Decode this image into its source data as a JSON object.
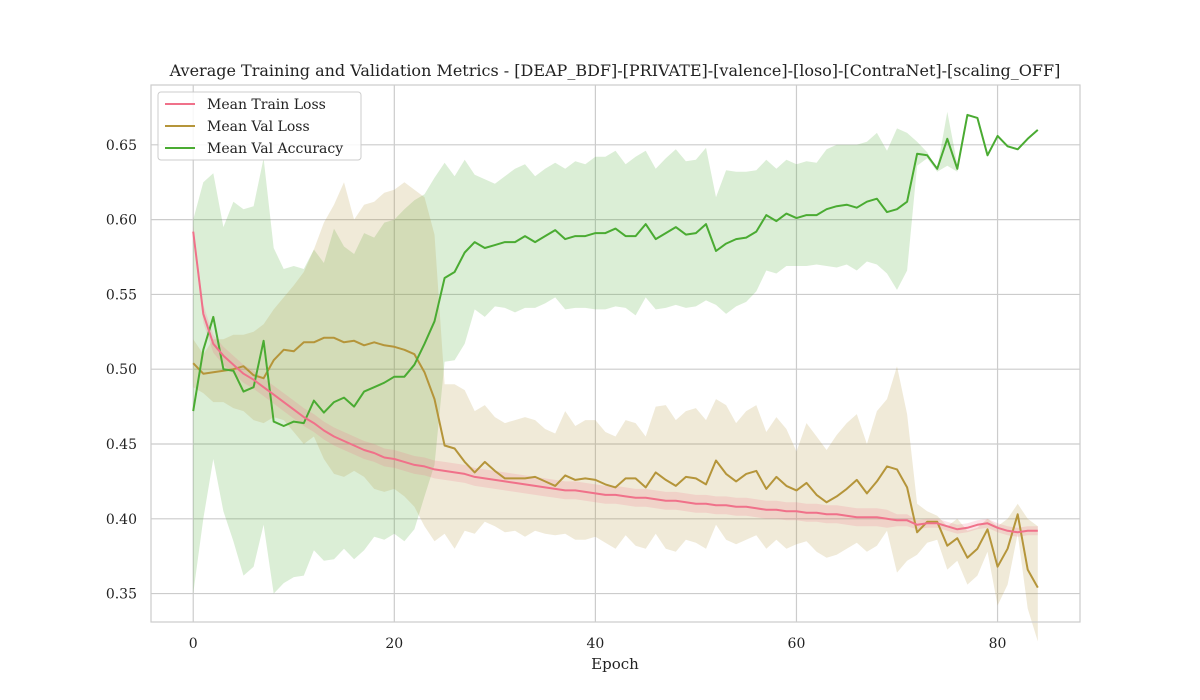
{
  "chart_data": {
    "type": "line",
    "title": "Average Training and Validation Metrics - [DEAP_BDF]-[PRIVATE]-[valence]-[loso]-[ContraNet]-[scaling_OFF]",
    "xlabel": "Epoch",
    "ylabel": "",
    "xlim": [
      -4.2,
      88.2
    ],
    "ylim": [
      0.331,
      0.69
    ],
    "xticks": [
      0,
      20,
      40,
      60,
      80
    ],
    "yticks": [
      0.35,
      0.4,
      0.45,
      0.5,
      0.55,
      0.6,
      0.65
    ],
    "ytick_labels": [
      "0.35",
      "0.40",
      "0.45",
      "0.50",
      "0.55",
      "0.60",
      "0.65"
    ],
    "grid": true,
    "legend_position": "upper-left",
    "x": [
      0,
      1,
      2,
      3,
      4,
      5,
      6,
      7,
      8,
      9,
      10,
      11,
      12,
      13,
      14,
      15,
      16,
      17,
      18,
      19,
      20,
      21,
      22,
      23,
      24,
      25,
      26,
      27,
      28,
      29,
      30,
      31,
      32,
      33,
      34,
      35,
      36,
      37,
      38,
      39,
      40,
      41,
      42,
      43,
      44,
      45,
      46,
      47,
      48,
      49,
      50,
      51,
      52,
      53,
      54,
      55,
      56,
      57,
      58,
      59,
      60,
      61,
      62,
      63,
      64,
      65,
      66,
      67,
      68,
      69,
      70,
      71,
      72,
      73,
      74,
      75,
      76,
      77,
      78,
      79,
      80,
      81,
      82,
      83,
      84
    ],
    "series": [
      {
        "name": "Mean Train Loss",
        "color": "#f0718a",
        "values": [
          0.592,
          0.537,
          0.517,
          0.509,
          0.503,
          0.497,
          0.493,
          0.488,
          0.483,
          0.478,
          0.473,
          0.468,
          0.464,
          0.459,
          0.455,
          0.452,
          0.449,
          0.446,
          0.444,
          0.441,
          0.44,
          0.438,
          0.436,
          0.435,
          0.433,
          0.432,
          0.431,
          0.43,
          0.428,
          0.427,
          0.426,
          0.425,
          0.424,
          0.423,
          0.422,
          0.421,
          0.42,
          0.419,
          0.419,
          0.418,
          0.417,
          0.416,
          0.416,
          0.415,
          0.414,
          0.414,
          0.413,
          0.412,
          0.412,
          0.411,
          0.41,
          0.41,
          0.409,
          0.409,
          0.408,
          0.408,
          0.407,
          0.406,
          0.406,
          0.405,
          0.405,
          0.404,
          0.404,
          0.403,
          0.403,
          0.402,
          0.401,
          0.401,
          0.401,
          0.4,
          0.399,
          0.399,
          0.396,
          0.397,
          0.397,
          0.395,
          0.393,
          0.394,
          0.396,
          0.397,
          0.394,
          0.392,
          0.391,
          0.392,
          0.392
        ],
        "band": [
          0.004,
          0.006,
          0.006,
          0.006,
          0.006,
          0.006,
          0.006,
          0.006,
          0.006,
          0.006,
          0.006,
          0.006,
          0.006,
          0.006,
          0.006,
          0.006,
          0.006,
          0.006,
          0.006,
          0.006,
          0.006,
          0.006,
          0.006,
          0.006,
          0.006,
          0.006,
          0.006,
          0.006,
          0.006,
          0.006,
          0.006,
          0.006,
          0.006,
          0.006,
          0.006,
          0.006,
          0.006,
          0.006,
          0.006,
          0.006,
          0.006,
          0.006,
          0.006,
          0.006,
          0.006,
          0.006,
          0.006,
          0.006,
          0.006,
          0.006,
          0.006,
          0.006,
          0.006,
          0.006,
          0.006,
          0.006,
          0.006,
          0.006,
          0.006,
          0.006,
          0.006,
          0.006,
          0.006,
          0.006,
          0.006,
          0.006,
          0.006,
          0.006,
          0.006,
          0.006,
          0.004,
          0.004,
          0.003,
          0.003,
          0.003,
          0.003,
          0.003,
          0.003,
          0.003,
          0.003,
          0.003,
          0.003,
          0.003,
          0.003,
          0.003
        ]
      },
      {
        "name": "Mean Val Loss",
        "color": "#b5953a",
        "values": [
          0.504,
          0.497,
          0.498,
          0.499,
          0.5,
          0.502,
          0.496,
          0.494,
          0.506,
          0.513,
          0.512,
          0.518,
          0.518,
          0.521,
          0.521,
          0.518,
          0.519,
          0.516,
          0.518,
          0.516,
          0.515,
          0.513,
          0.51,
          0.498,
          0.48,
          0.449,
          0.447,
          0.438,
          0.431,
          0.438,
          0.432,
          0.427,
          0.427,
          0.427,
          0.428,
          0.425,
          0.422,
          0.429,
          0.426,
          0.427,
          0.426,
          0.423,
          0.421,
          0.427,
          0.427,
          0.421,
          0.431,
          0.426,
          0.422,
          0.428,
          0.427,
          0.423,
          0.439,
          0.43,
          0.425,
          0.43,
          0.432,
          0.42,
          0.428,
          0.422,
          0.419,
          0.424,
          0.416,
          0.411,
          0.415,
          0.42,
          0.426,
          0.417,
          0.425,
          0.435,
          0.433,
          0.421,
          0.391,
          0.398,
          0.398,
          0.382,
          0.387,
          0.374,
          0.38,
          0.393,
          0.368,
          0.38,
          0.403,
          0.366,
          0.354
        ],
        "band_upper": [
          0.52,
          0.51,
          0.52,
          0.52,
          0.523,
          0.523,
          0.525,
          0.53,
          0.54,
          0.548,
          0.556,
          0.565,
          0.58,
          0.598,
          0.61,
          0.625,
          0.6,
          0.61,
          0.612,
          0.618,
          0.62,
          0.625,
          0.62,
          0.615,
          0.59,
          0.49,
          0.49,
          0.486,
          0.472,
          0.476,
          0.468,
          0.464,
          0.466,
          0.468,
          0.466,
          0.46,
          0.457,
          0.472,
          0.462,
          0.466,
          0.466,
          0.458,
          0.455,
          0.466,
          0.464,
          0.455,
          0.475,
          0.476,
          0.466,
          0.472,
          0.474,
          0.466,
          0.48,
          0.476,
          0.464,
          0.472,
          0.476,
          0.458,
          0.468,
          0.46,
          0.445,
          0.464,
          0.455,
          0.446,
          0.456,
          0.464,
          0.47,
          0.45,
          0.472,
          0.48,
          0.502,
          0.47,
          0.41,
          0.405,
          0.402,
          0.395,
          0.4,
          0.392,
          0.394,
          0.4,
          0.395,
          0.4,
          0.41,
          0.4,
          0.395
        ],
        "band_lower": [
          0.488,
          0.484,
          0.478,
          0.478,
          0.474,
          0.472,
          0.466,
          0.464,
          0.468,
          0.466,
          0.458,
          0.45,
          0.455,
          0.44,
          0.43,
          0.428,
          0.432,
          0.428,
          0.42,
          0.418,
          0.42,
          0.415,
          0.408,
          0.395,
          0.385,
          0.39,
          0.38,
          0.392,
          0.39,
          0.398,
          0.395,
          0.391,
          0.392,
          0.388,
          0.392,
          0.39,
          0.389,
          0.39,
          0.386,
          0.386,
          0.388,
          0.384,
          0.38,
          0.389,
          0.382,
          0.38,
          0.39,
          0.38,
          0.378,
          0.386,
          0.384,
          0.38,
          0.396,
          0.386,
          0.383,
          0.386,
          0.389,
          0.38,
          0.386,
          0.38,
          0.383,
          0.385,
          0.378,
          0.374,
          0.376,
          0.38,
          0.384,
          0.378,
          0.382,
          0.392,
          0.364,
          0.372,
          0.376,
          0.384,
          0.386,
          0.366,
          0.372,
          0.356,
          0.362,
          0.378,
          0.342,
          0.356,
          0.39,
          0.34,
          0.318
        ]
      },
      {
        "name": "Mean Val Accuracy",
        "color": "#4aab32",
        "values": [
          0.472,
          0.513,
          0.535,
          0.5,
          0.499,
          0.485,
          0.488,
          0.519,
          0.465,
          0.462,
          0.465,
          0.464,
          0.479,
          0.471,
          0.478,
          0.481,
          0.475,
          0.485,
          0.488,
          0.491,
          0.495,
          0.495,
          0.503,
          0.517,
          0.532,
          0.561,
          0.565,
          0.578,
          0.585,
          0.581,
          0.583,
          0.585,
          0.585,
          0.589,
          0.585,
          0.589,
          0.593,
          0.587,
          0.589,
          0.589,
          0.591,
          0.591,
          0.594,
          0.589,
          0.589,
          0.597,
          0.587,
          0.591,
          0.595,
          0.59,
          0.591,
          0.597,
          0.579,
          0.584,
          0.587,
          0.588,
          0.592,
          0.603,
          0.599,
          0.604,
          0.601,
          0.603,
          0.603,
          0.607,
          0.609,
          0.61,
          0.608,
          0.612,
          0.614,
          0.605,
          0.607,
          0.612,
          0.644,
          0.643,
          0.634,
          0.654,
          0.634,
          0.67,
          0.668,
          0.643,
          0.656,
          0.649,
          0.647,
          0.654,
          0.66
        ],
        "band_upper": [
          0.6,
          0.625,
          0.631,
          0.595,
          0.612,
          0.607,
          0.609,
          0.641,
          0.581,
          0.567,
          0.569,
          0.567,
          0.58,
          0.571,
          0.594,
          0.582,
          0.577,
          0.591,
          0.588,
          0.598,
          0.6,
          0.607,
          0.613,
          0.617,
          0.628,
          0.638,
          0.629,
          0.64,
          0.63,
          0.627,
          0.624,
          0.629,
          0.634,
          0.637,
          0.629,
          0.634,
          0.638,
          0.634,
          0.639,
          0.637,
          0.642,
          0.642,
          0.646,
          0.637,
          0.642,
          0.646,
          0.634,
          0.641,
          0.647,
          0.639,
          0.64,
          0.648,
          0.615,
          0.633,
          0.632,
          0.632,
          0.633,
          0.64,
          0.634,
          0.64,
          0.637,
          0.639,
          0.638,
          0.647,
          0.65,
          0.65,
          0.65,
          0.652,
          0.658,
          0.646,
          0.661,
          0.658,
          0.652,
          0.645,
          0.634,
          0.672,
          0.637,
          0.67,
          0.668,
          0.643,
          0.656,
          0.649,
          0.647,
          0.654,
          0.66
        ],
        "band_lower": [
          0.35,
          0.4,
          0.44,
          0.405,
          0.385,
          0.362,
          0.368,
          0.396,
          0.35,
          0.357,
          0.361,
          0.362,
          0.379,
          0.372,
          0.373,
          0.38,
          0.373,
          0.379,
          0.388,
          0.386,
          0.39,
          0.385,
          0.393,
          0.415,
          0.436,
          0.505,
          0.506,
          0.517,
          0.54,
          0.535,
          0.542,
          0.541,
          0.538,
          0.541,
          0.541,
          0.544,
          0.548,
          0.54,
          0.541,
          0.541,
          0.54,
          0.54,
          0.542,
          0.541,
          0.536,
          0.548,
          0.54,
          0.541,
          0.543,
          0.541,
          0.542,
          0.546,
          0.543,
          0.537,
          0.542,
          0.545,
          0.552,
          0.566,
          0.564,
          0.569,
          0.569,
          0.569,
          0.57,
          0.569,
          0.568,
          0.57,
          0.566,
          0.572,
          0.57,
          0.564,
          0.553,
          0.566,
          0.636,
          0.641,
          0.632,
          0.636,
          0.632,
          0.67,
          0.668,
          0.643,
          0.656,
          0.649,
          0.647,
          0.654,
          0.66
        ]
      }
    ]
  }
}
